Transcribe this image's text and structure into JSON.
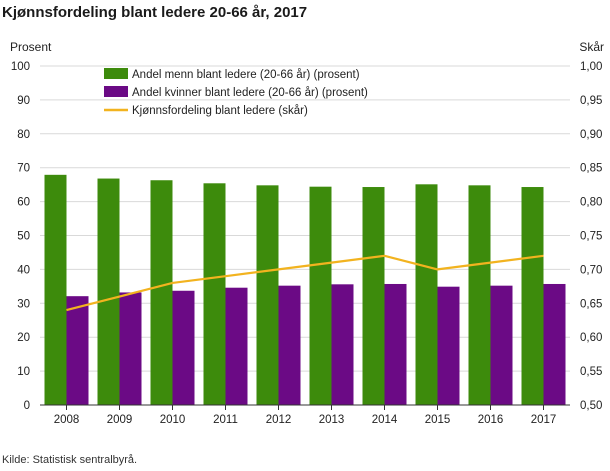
{
  "title": "Kjønnsfordeling blant ledere 20-66 år, 2017",
  "source": "Kilde: Statistisk sentralbyrå.",
  "chart_data": {
    "type": "bar",
    "categories": [
      "2008",
      "2009",
      "2010",
      "2011",
      "2012",
      "2013",
      "2014",
      "2015",
      "2016",
      "2017"
    ],
    "series": [
      {
        "name": "Andel menn blant ledere (20-66 år) (prosent)",
        "type": "bar",
        "axis": "left",
        "color": "#3d8b0c",
        "values": [
          67.9,
          66.8,
          66.3,
          65.4,
          64.8,
          64.4,
          64.3,
          65.1,
          64.8,
          64.3
        ]
      },
      {
        "name": "Andel kvinner blant ledere (20-66 år) (prosent)",
        "type": "bar",
        "axis": "left",
        "color": "#6b0a85",
        "values": [
          32.1,
          33.2,
          33.7,
          34.6,
          35.2,
          35.6,
          35.7,
          34.9,
          35.2,
          35.7
        ]
      },
      {
        "name": "Kjønnsfordeling blant ledere (skår)",
        "type": "line",
        "axis": "right",
        "color": "#f2b31f",
        "values": [
          0.64,
          0.66,
          0.68,
          0.69,
          0.7,
          0.71,
          0.72,
          0.7,
          0.71,
          0.72
        ]
      }
    ],
    "ylabel": "Prosent",
    "y2label": "Skår",
    "ylim": [
      0,
      100
    ],
    "y2lim": [
      0.5,
      1.0
    ],
    "yticks": [
      "0",
      "10",
      "20",
      "30",
      "40",
      "50",
      "60",
      "70",
      "80",
      "90",
      "100"
    ],
    "y2ticks": [
      "0,50",
      "0,55",
      "0,60",
      "0,65",
      "0,70",
      "0,75",
      "0,80",
      "0,85",
      "0,90",
      "0,95",
      "1,00"
    ],
    "grid": true,
    "legend_position": "top-center"
  }
}
